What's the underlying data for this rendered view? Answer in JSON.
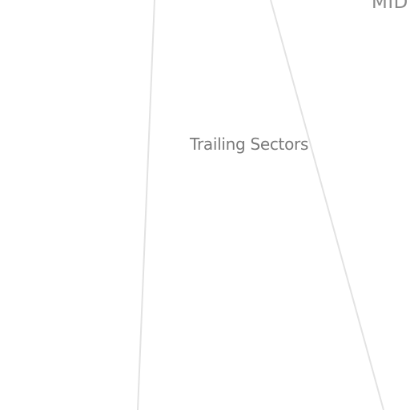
{
  "view": {
    "title": "Trailing Sectors",
    "corner_tag": "MID"
  },
  "colors": {
    "background": "#ffffff",
    "divider": "#e3e3e3",
    "text": "#7a7a7a"
  }
}
